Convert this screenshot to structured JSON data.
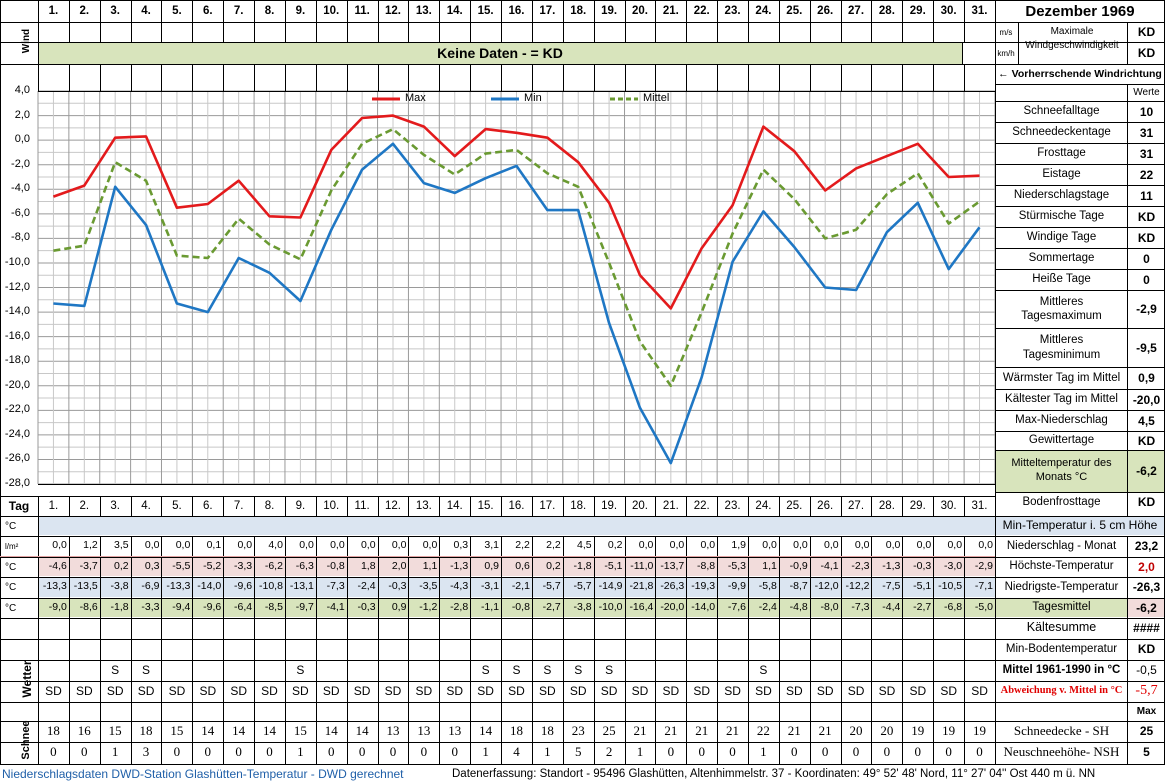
{
  "header": {
    "title": "Dezember 1969",
    "days": [
      "1.",
      "2.",
      "3.",
      "4.",
      "5.",
      "6.",
      "7.",
      "8.",
      "9.",
      "10.",
      "11.",
      "12.",
      "13.",
      "14.",
      "15.",
      "16.",
      "17.",
      "18.",
      "19.",
      "20.",
      "21.",
      "22.",
      "23.",
      "24.",
      "25.",
      "26.",
      "27.",
      "28.",
      "29.",
      "30.",
      "31."
    ]
  },
  "wind": {
    "label": "Wind",
    "no_data": "Keine Daten -  = KD",
    "unit_ms": "m/s",
    "unit_kmh": "km/h",
    "max_label": "Maximale Windgeschwindigkeit",
    "max_ms": "KD",
    "max_kmh": "KD",
    "direction_label": "← Vorherrschende Windrichtung"
  },
  "stats": {
    "header": "Werte",
    "rows": [
      {
        "label": "Schneefalltage",
        "value": "10"
      },
      {
        "label": "Schneedeckentage",
        "value": "31"
      },
      {
        "label": "Frosttage",
        "value": "31"
      },
      {
        "label": "Eistage",
        "value": "22"
      },
      {
        "label": "Niederschlagstage",
        "value": "11"
      },
      {
        "label": "Stürmische Tage",
        "value": "KD"
      },
      {
        "label": "Windige Tage",
        "value": "KD"
      },
      {
        "label": "Sommertage",
        "value": "0"
      },
      {
        "label": "Heiße Tage",
        "value": "0"
      },
      {
        "label": "Mittleres Tagesmaximum",
        "value": "-2,9"
      },
      {
        "label": "Mittleres Tagesminimum",
        "value": "-9,5"
      },
      {
        "label": "Wärmster Tag im Mittel",
        "value": "0,9"
      },
      {
        "label": "Kältester Tag im Mittel",
        "value": "-20,0"
      },
      {
        "label": "Max-Niederschlag",
        "value": "4,5"
      },
      {
        "label": "Gewittertage",
        "value": "KD"
      },
      {
        "label": "Mitteltemperatur des Monats °C",
        "value": "-6,2"
      },
      {
        "label": "Bodenfrosttage",
        "value": "KD"
      }
    ]
  },
  "table": {
    "tag_label": "Tag",
    "units": {
      "soil": "°C",
      "precip": "l/m²",
      "max": "°C",
      "min": "°C",
      "mean": "°C"
    },
    "min_soil_label": "Min-Temperatur i. 5 cm Höhe",
    "precip": [
      "0,0",
      "1,2",
      "3,5",
      "0,0",
      "0,0",
      "0,1",
      "0,0",
      "4,0",
      "0,0",
      "0,0",
      "0,0",
      "0,0",
      "0,0",
      "0,3",
      "3,1",
      "2,2",
      "2,2",
      "4,5",
      "0,2",
      "0,0",
      "0,0",
      "0,0",
      "1,9",
      "0,0",
      "0,0",
      "0,0",
      "0,0",
      "0,0",
      "0,0",
      "0,0",
      "0,0"
    ],
    "precip_label": "Niederschlag - Monat",
    "precip_total": "23,2",
    "max_label": "Höchste-Temperatur",
    "max_total": "2,0",
    "min_label": "Niedrigste-Temperatur",
    "min_total": "-26,3",
    "mean_label": "Tagesmittel",
    "mean_total": "-6,2",
    "kaelte_label": "Kältesumme",
    "kaelte_value": "####",
    "minboden_label": "Min-Bodentemperatur",
    "minboden_value": "KD",
    "mittel_label": "Mittel 1961-1990 in °C",
    "mittel_value": "-0,5",
    "abw_label": "Abweichung v. Mittel in °C",
    "abw_value": "-5,7",
    "wetter_label": "Wetter",
    "wetter_s": [
      "",
      "",
      "S",
      "S",
      "",
      "",
      "",
      "",
      "S",
      "",
      "",
      "",
      "",
      "",
      "S",
      "S",
      "S",
      "S",
      "S",
      "",
      "",
      "",
      "",
      "S",
      "",
      "",
      "",
      "",
      "",
      "",
      ""
    ],
    "wetter_sd": "SD",
    "max_hdr": "Max",
    "schnee_label": "Schnee",
    "sh": [
      "18",
      "16",
      "15",
      "18",
      "15",
      "14",
      "14",
      "14",
      "15",
      "14",
      "14",
      "13",
      "13",
      "13",
      "14",
      "18",
      "18",
      "23",
      "25",
      "21",
      "21",
      "21",
      "21",
      "22",
      "21",
      "21",
      "20",
      "20",
      "19",
      "19",
      "19"
    ],
    "sh_label": "Schneedecke -  SH",
    "sh_max": "25",
    "nsh": [
      "0",
      "0",
      "1",
      "3",
      "0",
      "0",
      "0",
      "0",
      "1",
      "0",
      "0",
      "0",
      "0",
      "0",
      "1",
      "4",
      "1",
      "5",
      "2",
      "1",
      "0",
      "0",
      "0",
      "1",
      "0",
      "0",
      "0",
      "0",
      "0",
      "0",
      "0"
    ],
    "nsh_label": "Neuschneehöhe- NSH",
    "nsh_max": "5"
  },
  "footer": {
    "left": "Niederschlagsdaten DWD-Station Glashütten-Temperatur -  DWD gerechnet",
    "right": "Datenerfassung: Standort - 95496 Glashütten, Altenhimmelstr. 37 - Koordinaten: 49° 52' 48' Nord,  11° 27' 04'' Ost  440 m ü. NN"
  },
  "colors": {
    "max": "#e31a1c",
    "min": "#1f77c4",
    "mean": "#6a9a32",
    "green_bg": "#d8e4bc",
    "blue_bg": "#dbe5f1",
    "red_bg": "#f2dcdb"
  },
  "chart_data": {
    "type": "line",
    "categories": [
      "1.",
      "2.",
      "3.",
      "4.",
      "5.",
      "6.",
      "7.",
      "8.",
      "9.",
      "10.",
      "11.",
      "12.",
      "13.",
      "14.",
      "15.",
      "16.",
      "17.",
      "18.",
      "19.",
      "20.",
      "21.",
      "22.",
      "23.",
      "24.",
      "25.",
      "26.",
      "27.",
      "28.",
      "29.",
      "30.",
      "31."
    ],
    "ylim": [
      -28,
      4
    ],
    "yticks": [
      "4,0",
      "2,0",
      "0,0",
      "-2,0",
      "-4,0",
      "-6,0",
      "-8,0",
      "-10,0",
      "-12,0",
      "-14,0",
      "-16,0",
      "-18,0",
      "-20,0",
      "-22,0",
      "-24,0",
      "-26,0",
      "-28,0"
    ],
    "grid": true,
    "legend": "top",
    "series": [
      {
        "name": "Max",
        "values": [
          -4.6,
          -3.7,
          0.2,
          0.3,
          -5.5,
          -5.2,
          -3.3,
          -6.2,
          -6.3,
          -0.8,
          1.8,
          2.0,
          1.1,
          -1.3,
          0.9,
          0.6,
          0.2,
          -1.8,
          -5.1,
          -11.0,
          -13.7,
          -8.8,
          -5.3,
          1.1,
          -0.9,
          -4.1,
          -2.3,
          -1.3,
          -0.3,
          -3.0,
          -2.9
        ]
      },
      {
        "name": "Min",
        "values": [
          -13.3,
          -13.5,
          -3.8,
          -6.9,
          -13.3,
          -14.0,
          -9.6,
          -10.8,
          -13.1,
          -7.3,
          -2.4,
          -0.3,
          -3.5,
          -4.3,
          -3.1,
          -2.1,
          -5.7,
          -5.7,
          -14.9,
          -21.8,
          -26.3,
          -19.3,
          -9.9,
          -5.8,
          -8.7,
          -12.0,
          -12.2,
          -7.5,
          -5.1,
          -10.5,
          -7.1
        ]
      },
      {
        "name": "Mittel",
        "values": [
          -9.0,
          -8.6,
          -1.8,
          -3.3,
          -9.4,
          -9.6,
          -6.4,
          -8.5,
          -9.7,
          -4.1,
          -0.3,
          0.9,
          -1.2,
          -2.8,
          -1.1,
          -0.8,
          -2.7,
          -3.8,
          -10.0,
          -16.4,
          -20.0,
          -14.0,
          -7.6,
          -2.4,
          -4.8,
          -8.0,
          -7.3,
          -4.4,
          -2.7,
          -6.8,
          -5.0
        ]
      }
    ]
  }
}
